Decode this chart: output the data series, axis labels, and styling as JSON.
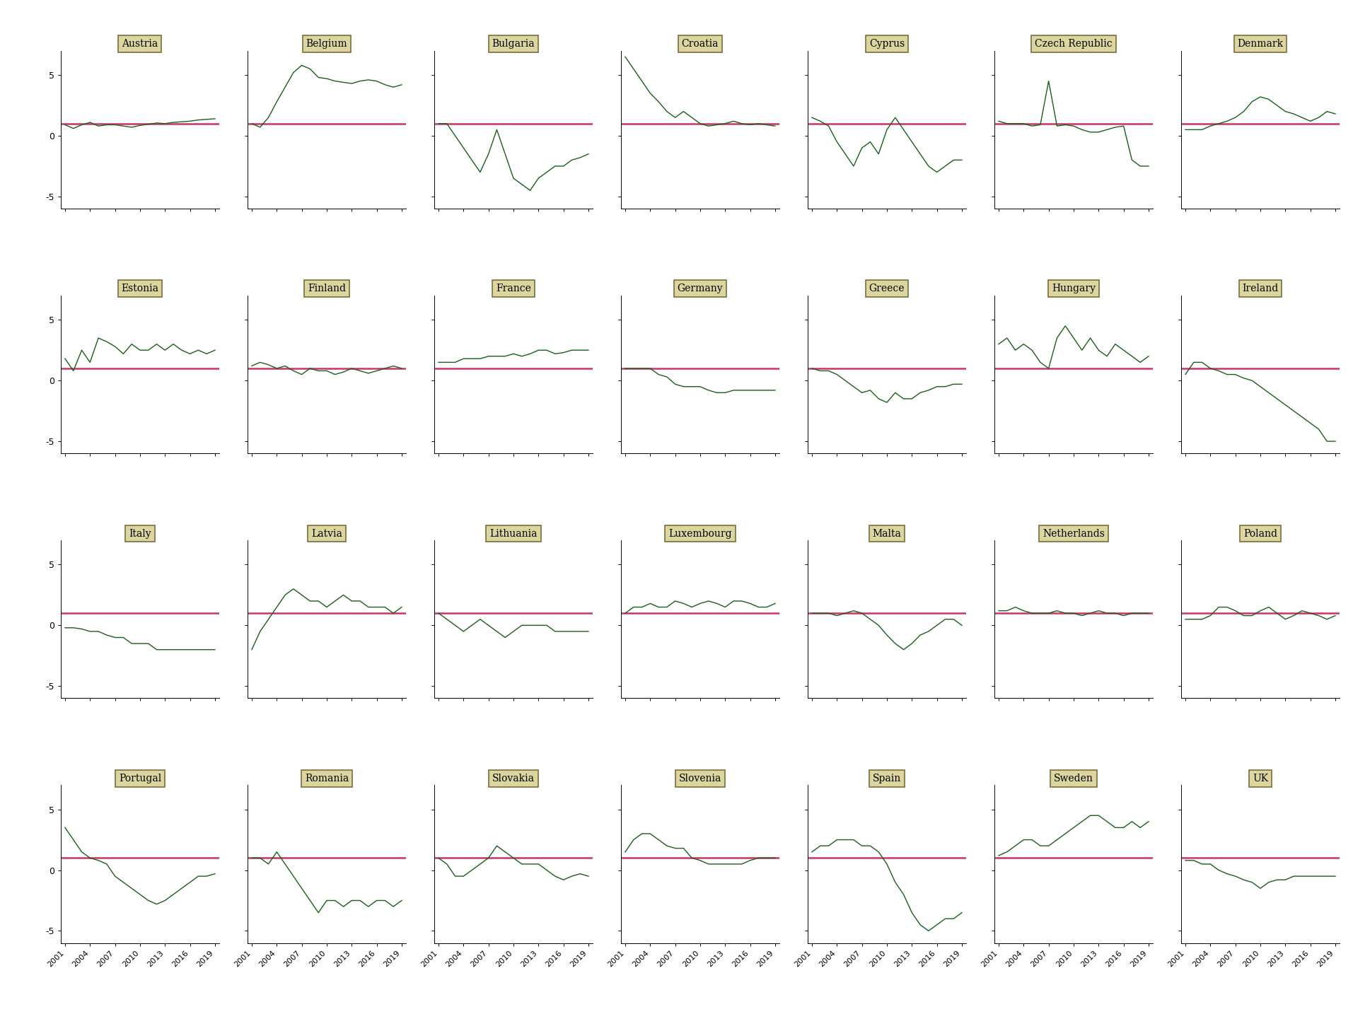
{
  "years": [
    2001,
    2002,
    2003,
    2004,
    2005,
    2006,
    2007,
    2008,
    2009,
    2010,
    2011,
    2012,
    2013,
    2014,
    2015,
    2016,
    2017,
    2018,
    2019
  ],
  "hline_value": 1.0,
  "ylim": [
    -6,
    7
  ],
  "yticks": [
    -5,
    0,
    5
  ],
  "line_color": "#1a5e1a",
  "hline_color": "#cc3366",
  "panel_bg": "#ffffff",
  "label_bg": "#ddd5a0",
  "label_border": "#7a6e3a",
  "countries": {
    "Austria": [
      0.9,
      0.6,
      0.9,
      1.1,
      0.8,
      0.9,
      0.9,
      0.8,
      0.7,
      0.85,
      0.95,
      1.05,
      1.0,
      1.1,
      1.15,
      1.2,
      1.3,
      1.35,
      1.4
    ],
    "Belgium": [
      1.0,
      0.7,
      1.5,
      2.8,
      4.0,
      5.2,
      5.8,
      5.5,
      4.8,
      4.7,
      4.5,
      4.4,
      4.3,
      4.5,
      4.6,
      4.5,
      4.2,
      4.0,
      4.2
    ],
    "Bulgaria": [
      1.0,
      1.0,
      0.0,
      -1.0,
      -2.0,
      -3.0,
      -1.5,
      0.5,
      -1.5,
      -3.5,
      -4.0,
      -4.5,
      -3.5,
      -3.0,
      -2.5,
      -2.5,
      -2.0,
      -1.8,
      -1.5
    ],
    "Croatia": [
      6.5,
      5.5,
      4.5,
      3.5,
      2.8,
      2.0,
      1.5,
      2.0,
      1.5,
      1.0,
      0.8,
      0.9,
      1.0,
      1.2,
      1.0,
      0.9,
      1.0,
      0.9,
      0.8
    ],
    "Cyprus": [
      1.5,
      1.2,
      0.8,
      -0.5,
      -1.5,
      -2.5,
      -1.0,
      -0.5,
      -1.5,
      0.5,
      1.5,
      0.5,
      -0.5,
      -1.5,
      -2.5,
      -3.0,
      -2.5,
      -2.0,
      -2.0
    ],
    "Czech Republic": [
      1.2,
      1.0,
      1.0,
      1.0,
      0.8,
      0.9,
      4.5,
      0.8,
      0.9,
      0.8,
      0.5,
      0.3,
      0.3,
      0.5,
      0.7,
      0.8,
      -2.0,
      -2.5,
      -2.5
    ],
    "Denmark": [
      0.5,
      0.5,
      0.5,
      0.8,
      1.0,
      1.2,
      1.5,
      2.0,
      2.8,
      3.2,
      3.0,
      2.5,
      2.0,
      1.8,
      1.5,
      1.2,
      1.5,
      2.0,
      1.8
    ],
    "Estonia": [
      1.8,
      0.8,
      2.5,
      1.5,
      3.5,
      3.2,
      2.8,
      2.2,
      3.0,
      2.5,
      2.5,
      3.0,
      2.5,
      3.0,
      2.5,
      2.2,
      2.5,
      2.2,
      2.5
    ],
    "Finland": [
      1.2,
      1.5,
      1.3,
      1.0,
      1.2,
      0.8,
      0.5,
      1.0,
      0.8,
      0.8,
      0.5,
      0.7,
      1.0,
      0.8,
      0.6,
      0.8,
      1.0,
      1.2,
      1.0
    ],
    "France": [
      1.5,
      1.5,
      1.5,
      1.8,
      1.8,
      1.8,
      2.0,
      2.0,
      2.0,
      2.2,
      2.0,
      2.2,
      2.5,
      2.5,
      2.2,
      2.3,
      2.5,
      2.5,
      2.5
    ],
    "Germany": [
      1.0,
      1.0,
      1.0,
      1.0,
      0.5,
      0.3,
      -0.3,
      -0.5,
      -0.5,
      -0.5,
      -0.8,
      -1.0,
      -1.0,
      -0.8,
      -0.8,
      -0.8,
      -0.8,
      -0.8,
      -0.8
    ],
    "Greece": [
      1.0,
      0.8,
      0.8,
      0.5,
      0.0,
      -0.5,
      -1.0,
      -0.8,
      -1.5,
      -1.8,
      -1.0,
      -1.5,
      -1.5,
      -1.0,
      -0.8,
      -0.5,
      -0.5,
      -0.3,
      -0.3
    ],
    "Hungary": [
      3.0,
      3.5,
      2.5,
      3.0,
      2.5,
      1.5,
      1.0,
      3.5,
      4.5,
      3.5,
      2.5,
      3.5,
      2.5,
      2.0,
      3.0,
      2.5,
      2.0,
      1.5,
      2.0
    ],
    "Ireland": [
      0.5,
      1.5,
      1.5,
      1.0,
      0.8,
      0.5,
      0.5,
      0.2,
      0.0,
      -0.5,
      -1.0,
      -1.5,
      -2.0,
      -2.5,
      -3.0,
      -3.5,
      -4.0,
      -5.0,
      -5.0
    ],
    "Italy": [
      -0.2,
      -0.2,
      -0.3,
      -0.5,
      -0.5,
      -0.8,
      -1.0,
      -1.0,
      -1.5,
      -1.5,
      -1.5,
      -2.0,
      -2.0,
      -2.0,
      -2.0,
      -2.0,
      -2.0,
      -2.0,
      -2.0
    ],
    "Latvia": [
      -2.0,
      -0.5,
      0.5,
      1.5,
      2.5,
      3.0,
      2.5,
      2.0,
      2.0,
      1.5,
      2.0,
      2.5,
      2.0,
      2.0,
      1.5,
      1.5,
      1.5,
      1.0,
      1.5
    ],
    "Lithuania": [
      1.0,
      0.5,
      0.0,
      -0.5,
      0.0,
      0.5,
      0.0,
      -0.5,
      -1.0,
      -0.5,
      0.0,
      0.0,
      0.0,
      0.0,
      -0.5,
      -0.5,
      -0.5,
      -0.5,
      -0.5
    ],
    "Luxembourg": [
      1.0,
      1.5,
      1.5,
      1.8,
      1.5,
      1.5,
      2.0,
      1.8,
      1.5,
      1.8,
      2.0,
      1.8,
      1.5,
      2.0,
      2.0,
      1.8,
      1.5,
      1.5,
      1.8
    ],
    "Malta": [
      1.0,
      1.0,
      1.0,
      0.8,
      1.0,
      1.2,
      1.0,
      0.5,
      0.0,
      -0.8,
      -1.5,
      -2.0,
      -1.5,
      -0.8,
      -0.5,
      0.0,
      0.5,
      0.5,
      0.0
    ],
    "Netherlands": [
      1.2,
      1.2,
      1.5,
      1.2,
      1.0,
      1.0,
      1.0,
      1.2,
      1.0,
      1.0,
      0.8,
      1.0,
      1.2,
      1.0,
      1.0,
      0.8,
      1.0,
      1.0,
      1.0
    ],
    "Poland": [
      0.5,
      0.5,
      0.5,
      0.8,
      1.5,
      1.5,
      1.2,
      0.8,
      0.8,
      1.2,
      1.5,
      1.0,
      0.5,
      0.8,
      1.2,
      1.0,
      0.8,
      0.5,
      0.8
    ],
    "Portugal": [
      3.5,
      2.5,
      1.5,
      1.0,
      0.8,
      0.5,
      -0.5,
      -1.0,
      -1.5,
      -2.0,
      -2.5,
      -2.8,
      -2.5,
      -2.0,
      -1.5,
      -1.0,
      -0.5,
      -0.5,
      -0.3
    ],
    "Romania": [
      1.0,
      1.0,
      0.5,
      1.5,
      0.5,
      -0.5,
      -1.5,
      -2.5,
      -3.5,
      -2.5,
      -2.5,
      -3.0,
      -2.5,
      -2.5,
      -3.0,
      -2.5,
      -2.5,
      -3.0,
      -2.5
    ],
    "Slovakia": [
      1.0,
      0.5,
      -0.5,
      -0.5,
      0.0,
      0.5,
      1.0,
      2.0,
      1.5,
      1.0,
      0.5,
      0.5,
      0.5,
      0.0,
      -0.5,
      -0.8,
      -0.5,
      -0.3,
      -0.5
    ],
    "Slovenia": [
      1.5,
      2.5,
      3.0,
      3.0,
      2.5,
      2.0,
      1.8,
      1.8,
      1.0,
      0.8,
      0.5,
      0.5,
      0.5,
      0.5,
      0.5,
      0.8,
      1.0,
      1.0,
      1.0
    ],
    "Spain": [
      1.5,
      2.0,
      2.0,
      2.5,
      2.5,
      2.5,
      2.0,
      2.0,
      1.5,
      0.5,
      -1.0,
      -2.0,
      -3.5,
      -4.5,
      -5.0,
      -4.5,
      -4.0,
      -4.0,
      -3.5
    ],
    "Sweden": [
      1.2,
      1.5,
      2.0,
      2.5,
      2.5,
      2.0,
      2.0,
      2.5,
      3.0,
      3.5,
      4.0,
      4.5,
      4.5,
      4.0,
      3.5,
      3.5,
      4.0,
      3.5,
      4.0
    ],
    "UK": [
      0.8,
      0.8,
      0.5,
      0.5,
      0.0,
      -0.3,
      -0.5,
      -0.8,
      -1.0,
      -1.5,
      -1.0,
      -0.8,
      -0.8,
      -0.5,
      -0.5,
      -0.5,
      -0.5,
      -0.5,
      -0.5
    ]
  }
}
